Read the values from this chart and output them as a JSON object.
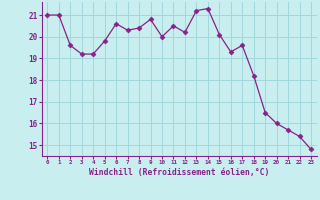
{
  "x": [
    0,
    1,
    2,
    3,
    4,
    5,
    6,
    7,
    8,
    9,
    10,
    11,
    12,
    13,
    14,
    15,
    16,
    17,
    18,
    19,
    20,
    21,
    22,
    23
  ],
  "y": [
    21.0,
    21.0,
    19.6,
    19.2,
    19.2,
    19.8,
    20.6,
    20.3,
    20.4,
    20.8,
    20.0,
    20.5,
    20.2,
    21.2,
    21.3,
    20.1,
    19.3,
    19.6,
    18.2,
    16.5,
    16.0,
    15.7,
    15.4,
    14.8
  ],
  "line_color": "#882288",
  "marker": "D",
  "marker_size": 2.5,
  "bg_color": "#c8eef0",
  "grid_color": "#a0d8dc",
  "xlabel": "Windchill (Refroidissement éolien,°C)",
  "xlabel_color": "#882288",
  "tick_color": "#882288",
  "label_color": "#882288",
  "yticks": [
    15,
    16,
    17,
    18,
    19,
    20,
    21
  ],
  "xticks": [
    0,
    1,
    2,
    3,
    4,
    5,
    6,
    7,
    8,
    9,
    10,
    11,
    12,
    13,
    14,
    15,
    16,
    17,
    18,
    19,
    20,
    21,
    22,
    23
  ],
  "ylim": [
    14.5,
    21.6
  ],
  "xlim": [
    -0.5,
    23.5
  ],
  "spine_color": "#882288"
}
